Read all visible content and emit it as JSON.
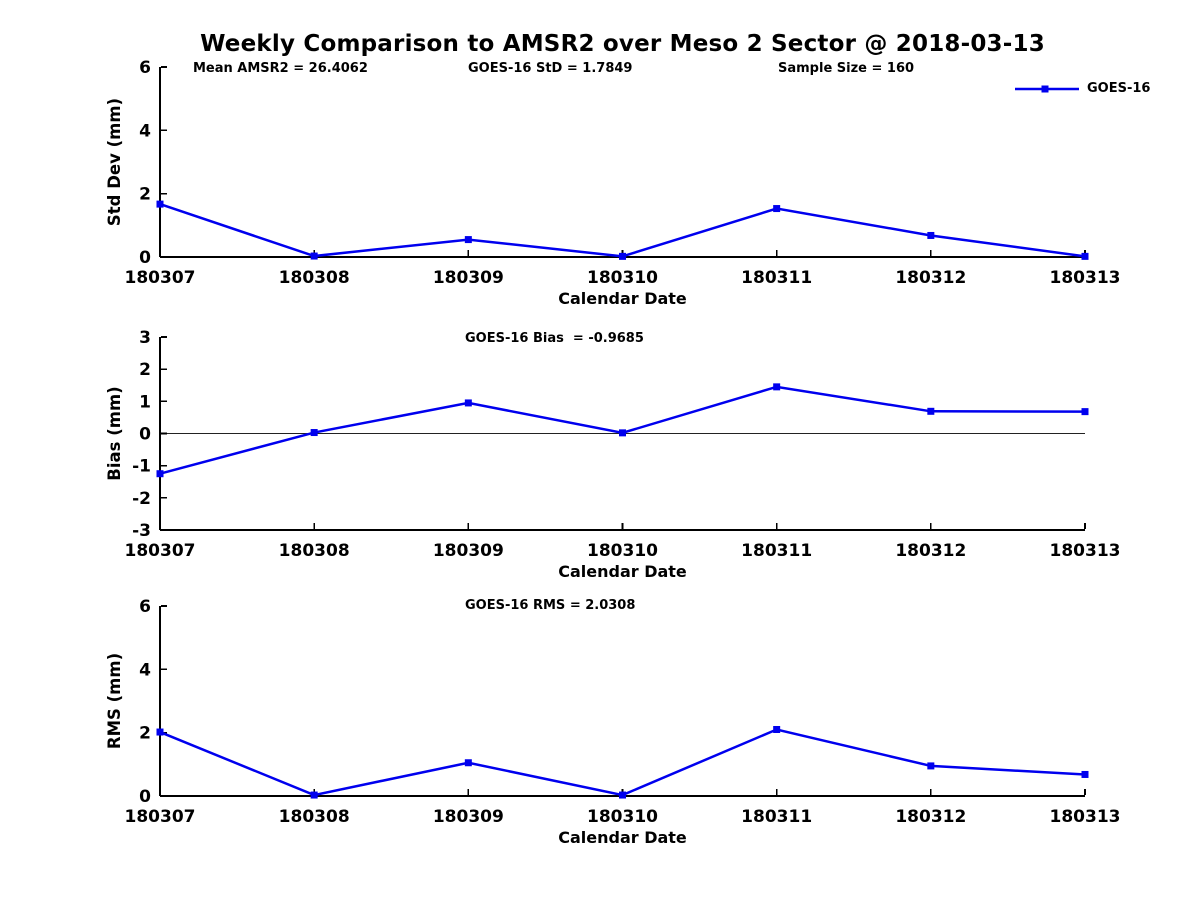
{
  "title": "Weekly Comparison to AMSR2 over Meso 2 Sector @ 2018-03-13",
  "legend": {
    "label": "GOES-16"
  },
  "colors": {
    "line": "#0000ee",
    "axis": "#000000",
    "zero_line": "#222222",
    "text": "#000000"
  },
  "chart_data": [
    {
      "type": "line",
      "id": "std-dev",
      "ylabel": "Std Dev (mm)",
      "xlabel": "Calendar Date",
      "annotations": [
        "Mean AMSR2 = 26.4062",
        "GOES-16 StD = 1.7849",
        "Sample Size = 160"
      ],
      "categories": [
        "180307",
        "180308",
        "180309",
        "180310",
        "180311",
        "180312",
        "180313"
      ],
      "series": [
        {
          "name": "GOES-16",
          "values": [
            1.67,
            0.03,
            0.55,
            0.02,
            1.53,
            0.68,
            0.02
          ]
        }
      ],
      "ylim": [
        0,
        6
      ],
      "yticks": [
        0,
        2,
        4,
        6
      ],
      "zero_line": false,
      "grid": false,
      "legend_position": "top-right-outside"
    },
    {
      "type": "line",
      "id": "bias",
      "ylabel": "Bias (mm)",
      "xlabel": "Calendar Date",
      "annotations": [
        "GOES-16 Bias  = -0.9685"
      ],
      "categories": [
        "180307",
        "180308",
        "180309",
        "180310",
        "180311",
        "180312",
        "180313"
      ],
      "series": [
        {
          "name": "GOES-16",
          "values": [
            -1.25,
            0.03,
            0.95,
            0.02,
            1.45,
            0.69,
            0.68
          ]
        }
      ],
      "ylim": [
        -3,
        3
      ],
      "yticks": [
        -3,
        -2,
        -1,
        0,
        1,
        2,
        3
      ],
      "zero_line": true,
      "grid": false,
      "legend_position": "none"
    },
    {
      "type": "line",
      "id": "rms",
      "ylabel": "RMS (mm)",
      "xlabel": "Calendar Date",
      "annotations": [
        "GOES-16 RMS = 2.0308"
      ],
      "categories": [
        "180307",
        "180308",
        "180309",
        "180310",
        "180311",
        "180312",
        "180313"
      ],
      "series": [
        {
          "name": "GOES-16",
          "values": [
            2.02,
            0.03,
            1.05,
            0.03,
            2.1,
            0.95,
            0.68
          ]
        }
      ],
      "ylim": [
        0,
        6
      ],
      "yticks": [
        0,
        2,
        4,
        6
      ],
      "zero_line": false,
      "grid": false,
      "legend_position": "none"
    }
  ]
}
